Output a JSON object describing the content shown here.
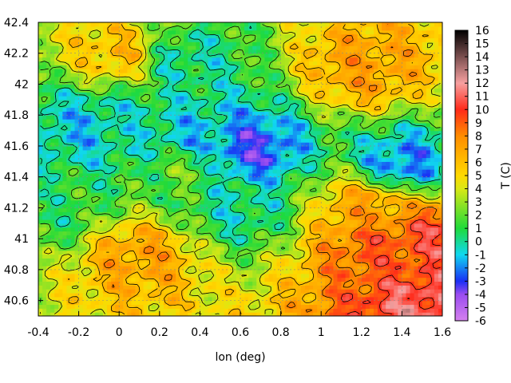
{
  "chart_data": {
    "type": "heatmap",
    "title": "",
    "xlabel": "lon (deg)",
    "ylabel": "",
    "colorbar_label": "T (C)",
    "xlim": [
      -0.4,
      1.6
    ],
    "ylim": [
      40.5,
      42.4
    ],
    "xticks": [
      "-0.4",
      "-0.2",
      "0",
      "0.2",
      "0.4",
      "0.6",
      "0.8",
      "1",
      "1.2",
      "1.4",
      "1.6"
    ],
    "yticks": [
      "40.6",
      "40.8",
      "41",
      "41.2",
      "41.4",
      "41.6",
      "41.8",
      "42",
      "42.2",
      "42.4"
    ],
    "colorbar_range": [
      -6,
      16
    ],
    "colorbar_ticks": [
      "-6",
      "-5",
      "-4",
      "-3",
      "-2",
      "-1",
      "0",
      "1",
      "2",
      "3",
      "4",
      "5",
      "6",
      "7",
      "8",
      "9",
      "10",
      "11",
      "12",
      "13",
      "14",
      "15",
      "16"
    ],
    "grid": true,
    "contours": true,
    "colors": {
      "-6": "#d580ee",
      "-4": "#9a4cf0",
      "-3": "#1a2ff5",
      "-1": "#10d8f0",
      "1": "#1fda3a",
      "4": "#d9e815",
      "5": "#ffd900",
      "8": "#ff8c00",
      "10": "#ff2a1a",
      "12": "#f7a0a0",
      "16": "#000000"
    },
    "field_features": [
      {
        "lon": 0.65,
        "lat": 41.58,
        "value": -3
      },
      {
        "lon": 0.35,
        "lat": 41.65,
        "value": -1
      },
      {
        "lon": 0.05,
        "lat": 41.72,
        "value": 0
      },
      {
        "lon": -0.15,
        "lat": 41.72,
        "value": -1
      },
      {
        "lon": 0.3,
        "lat": 42.15,
        "value": 0
      },
      {
        "lon": 0.6,
        "lat": 41.2,
        "value": 0
      },
      {
        "lon": -0.3,
        "lat": 41.2,
        "value": 1
      },
      {
        "lon": 1.4,
        "lat": 41.48,
        "value": -2
      },
      {
        "lon": 0.3,
        "lat": 41.45,
        "value": 2
      },
      {
        "lon": 1.25,
        "lat": 41.2,
        "value": 7
      },
      {
        "lon": 1.3,
        "lat": 40.95,
        "value": 9
      },
      {
        "lon": 1.55,
        "lat": 41.0,
        "value": 10
      },
      {
        "lon": 1.5,
        "lat": 40.55,
        "value": 11
      },
      {
        "lon": 0.1,
        "lat": 40.9,
        "value": 7
      },
      {
        "lon": 0.0,
        "lat": 42.2,
        "value": 6
      },
      {
        "lon": 1.2,
        "lat": 42.1,
        "value": 7
      }
    ]
  }
}
